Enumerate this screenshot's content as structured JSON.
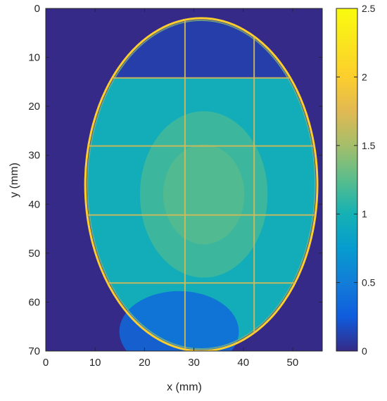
{
  "chart_data": {
    "type": "heatmap",
    "title": "",
    "xlabel": "x (mm)",
    "ylabel": "y (mm)",
    "xlim": [
      0,
      56
    ],
    "ylim": [
      0,
      70
    ],
    "y_reversed": true,
    "xticks": [
      0,
      10,
      20,
      30,
      40,
      50
    ],
    "yticks": [
      0,
      10,
      20,
      30,
      40,
      50,
      60,
      70
    ],
    "colormap": "parula",
    "color_range": [
      0,
      2.5
    ],
    "colorbar_ticks": [
      0,
      0.5,
      1,
      1.5,
      2,
      2.5
    ],
    "background_value": 0,
    "ellipse": {
      "center_x_mm": 31.5,
      "center_y_mm": 36,
      "semi_axis_x_mm": 23.5,
      "semi_axis_y_mm": 34,
      "rim_value": 2.0
    },
    "grid_lines": {
      "vertical_x_mm": [
        28.2,
        42.2
      ],
      "horizontal_y_mm": [
        14.2,
        28.1,
        42.2,
        56.1
      ],
      "value": 1.7
    },
    "regions": [
      {
        "label": "top-void",
        "value": 0.1,
        "y_range_mm": [
          2,
          14.2
        ]
      },
      {
        "label": "bottom-left-low",
        "value": 0.35,
        "center_mm": [
          27,
          66
        ],
        "radius_mm": 11
      },
      {
        "label": "central-high",
        "value": 1.2,
        "center_mm": [
          32,
          38
        ]
      }
    ]
  }
}
